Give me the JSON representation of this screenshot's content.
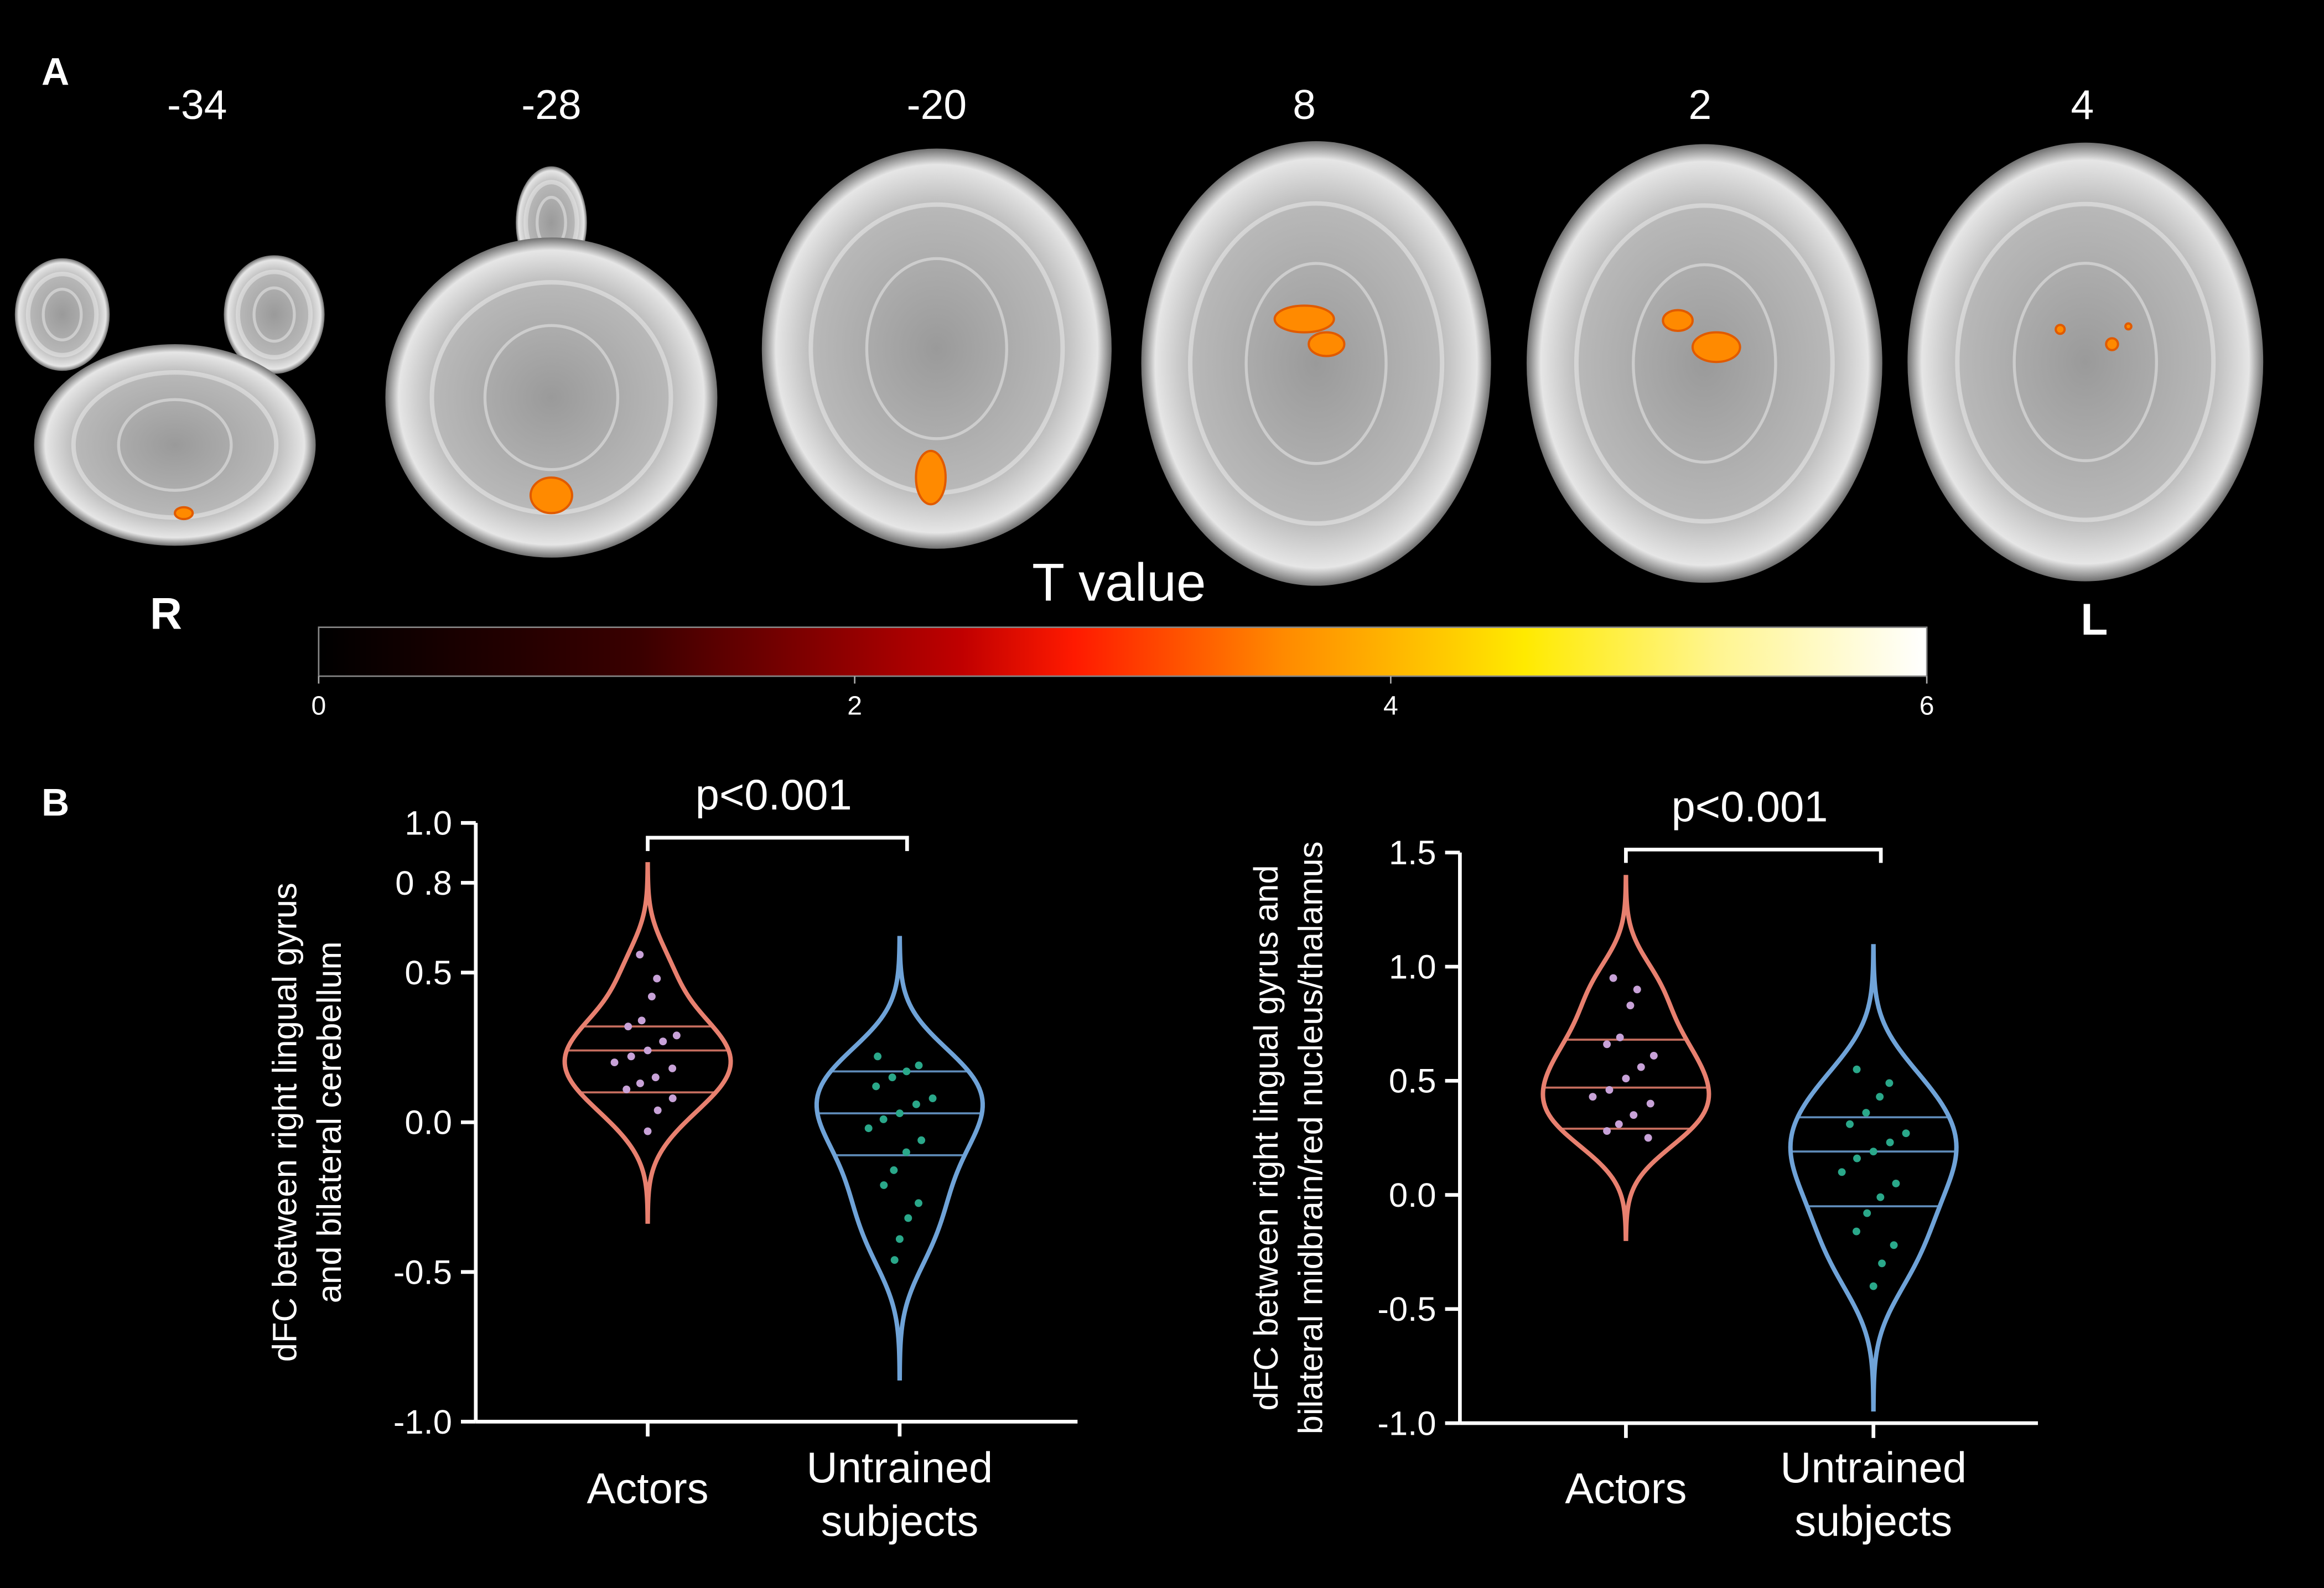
{
  "panel_a": {
    "label": "A",
    "slices": [
      -34,
      -28,
      -20,
      8,
      2,
      4
    ],
    "left_side": "R",
    "right_side": "L",
    "colorbar": {
      "title": "T value",
      "lim": [
        0,
        6
      ],
      "ticks": [
        0,
        2,
        4,
        6
      ]
    }
  },
  "panel_b": {
    "label": "B"
  },
  "chart_data": [
    {
      "type": "violin",
      "ylabel": [
        "dFC between right lingual gyrus",
        "and bilateral cerebellum"
      ],
      "annotation": "p<0.001",
      "categories": [
        [
          "Actors"
        ],
        [
          "Untrained",
          "subjects"
        ]
      ],
      "ylim": [
        -1,
        1
      ],
      "yticks": [
        {
          "value": 1,
          "label": "1.0"
        },
        {
          "value": 0.8,
          "label": "0 .8"
        },
        0.5,
        {
          "value": 0,
          "label": "0.0"
        },
        -0.5,
        {
          "value": -1,
          "label": "-1.0"
        }
      ],
      "series": [
        {
          "color": "#e8806f",
          "point_color": "#c8a2d8",
          "values": [
            0.56,
            0.48,
            0.42,
            0.34,
            0.32,
            0.29,
            0.27,
            0.24,
            0.22,
            0.2,
            0.18,
            0.15,
            0.13,
            0.11,
            0.08,
            0.04,
            -0.03
          ],
          "quartiles": [
            0.1,
            0.24,
            0.32
          ]
        },
        {
          "color": "#6fa3d8",
          "point_color": "#2aa88a",
          "values": [
            0.22,
            0.19,
            0.17,
            0.15,
            0.12,
            0.08,
            0.06,
            0.03,
            0.01,
            -0.02,
            -0.06,
            -0.1,
            -0.16,
            -0.21,
            -0.27,
            -0.32,
            -0.39,
            -0.46
          ],
          "quartiles": [
            -0.11,
            0.03,
            0.17
          ]
        }
      ]
    },
    {
      "type": "violin",
      "ylabel": [
        "dFC between right lingual gyrus and",
        "bilateral midbrain/red nucleus/thalamus"
      ],
      "annotation": "p<0.001",
      "categories": [
        [
          "Actors"
        ],
        [
          "Untrained",
          "subjects"
        ]
      ],
      "ylim": [
        -1,
        1.5
      ],
      "yticks": [
        1.5,
        {
          "value": 1,
          "label": "1.0"
        },
        0.5,
        {
          "value": 0,
          "label": "0.0"
        },
        -0.5,
        {
          "value": -1,
          "label": "-1.0"
        }
      ],
      "series": [
        {
          "color": "#e8806f",
          "point_color": "#c8a2d8",
          "values": [
            0.95,
            0.9,
            0.83,
            0.69,
            0.66,
            0.61,
            0.56,
            0.51,
            0.46,
            0.43,
            0.4,
            0.35,
            0.31,
            0.28,
            0.25
          ],
          "quartiles": [
            0.29,
            0.47,
            0.68
          ]
        },
        {
          "color": "#6fa3d8",
          "point_color": "#2aa88a",
          "values": [
            0.55,
            0.49,
            0.43,
            0.36,
            0.31,
            0.27,
            0.23,
            0.19,
            0.16,
            0.1,
            0.05,
            -0.01,
            -0.08,
            -0.16,
            -0.22,
            -0.3,
            -0.4
          ],
          "quartiles": [
            -0.05,
            0.19,
            0.34
          ]
        }
      ]
    }
  ]
}
